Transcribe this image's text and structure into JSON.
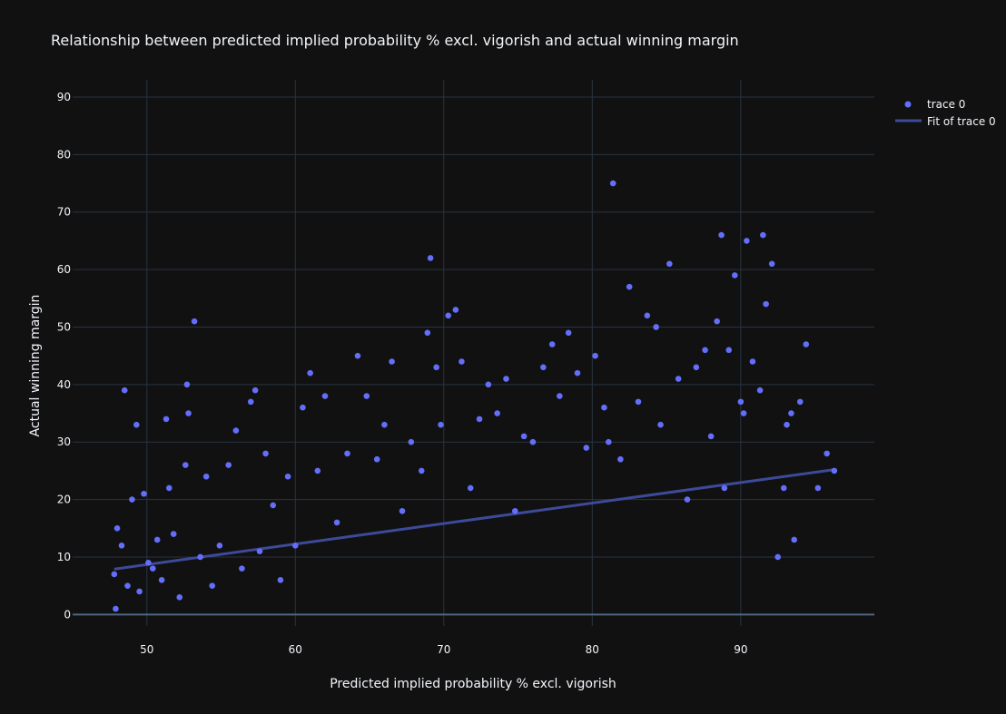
{
  "chart_data": {
    "type": "scatter",
    "title": "Relationship between predicted implied probability % excl. vigorish and actual winning margin",
    "xlabel": "Predicted implied probability % excl. vigorish",
    "ylabel": "Actual winning margin",
    "xlim": [
      45,
      99
    ],
    "ylim": [
      -2,
      93
    ],
    "xticks": [
      50,
      60,
      70,
      80,
      90
    ],
    "yticks": [
      0,
      10,
      20,
      30,
      40,
      50,
      60,
      70,
      80,
      90
    ],
    "grid": true,
    "legend_position": "top-right",
    "colors": {
      "background": "#111111",
      "grid": "#283442",
      "marker": "#636efa",
      "fit_line": "#3d4a99",
      "text": "#f2f5fa"
    },
    "series": [
      {
        "name": "trace 0",
        "mode": "markers",
        "x": [
          47.8,
          47.9,
          48.0,
          48.3,
          48.5,
          48.7,
          49.0,
          49.3,
          49.5,
          49.8,
          50.1,
          50.4,
          50.7,
          51.0,
          51.3,
          51.5,
          51.8,
          52.2,
          52.6,
          52.7,
          52.8,
          53.2,
          53.6,
          54.0,
          54.4,
          54.9,
          55.5,
          56.0,
          56.4,
          57.0,
          57.3,
          57.6,
          58.0,
          58.5,
          59.0,
          59.5,
          60.0,
          60.5,
          61.0,
          61.5,
          62.0,
          62.8,
          63.5,
          64.2,
          64.8,
          65.5,
          66.0,
          66.5,
          67.2,
          67.8,
          68.5,
          68.9,
          69.1,
          69.5,
          69.8,
          70.3,
          70.8,
          71.2,
          71.8,
          72.4,
          73.0,
          73.6,
          74.2,
          74.8,
          75.4,
          76.0,
          76.7,
          77.3,
          77.8,
          78.4,
          79.0,
          79.6,
          80.2,
          80.8,
          81.1,
          81.4,
          81.9,
          82.5,
          83.1,
          83.7,
          84.3,
          84.6,
          85.2,
          85.8,
          86.4,
          87.0,
          87.6,
          88.0,
          88.4,
          88.7,
          88.9,
          89.2,
          89.6,
          90.0,
          90.2,
          90.4,
          90.8,
          91.3,
          91.5,
          91.7,
          92.1,
          92.5,
          92.9,
          93.1,
          93.4,
          93.6,
          94.0,
          94.4,
          95.2,
          95.8,
          96.3
        ],
        "y": [
          7,
          1,
          15,
          12,
          39,
          5,
          20,
          33,
          4,
          21,
          9,
          8,
          13,
          6,
          34,
          22,
          14,
          3,
          26,
          40,
          35,
          51,
          10,
          24,
          5,
          12,
          26,
          32,
          8,
          37,
          39,
          11,
          28,
          19,
          6,
          24,
          12,
          36,
          42,
          25,
          38,
          16,
          28,
          45,
          38,
          27,
          33,
          44,
          18,
          30,
          25,
          49,
          62,
          43,
          33,
          52,
          53,
          44,
          22,
          34,
          40,
          35,
          41,
          18,
          31,
          30,
          43,
          47,
          38,
          49,
          42,
          29,
          45,
          36,
          30,
          75,
          27,
          57,
          37,
          52,
          50,
          33,
          61,
          41,
          20,
          43,
          46,
          31,
          51,
          66,
          22,
          46,
          59,
          37,
          35,
          65,
          44,
          39,
          66,
          54,
          61,
          10,
          22,
          33,
          35,
          13,
          37,
          47,
          22,
          28,
          25
        ]
      },
      {
        "name": "Fit of trace 0",
        "mode": "lines",
        "x": [
          47.8,
          96.3
        ],
        "y": [
          7.9,
          25.2
        ]
      }
    ]
  }
}
